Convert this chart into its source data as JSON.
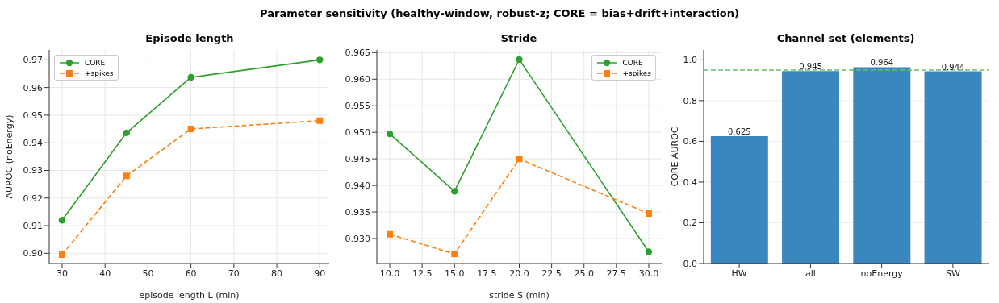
{
  "chart_data": [
    {
      "type": "line",
      "title": "Episode length",
      "xlabel": "episode length L (min)",
      "ylabel": "AUROC (noEnergy)",
      "annotations": [
        "Parameter sensitivity (healthy-window, robust-z; CORE = bias+drift+interaction)"
      ],
      "x": [
        30,
        45,
        60,
        90
      ],
      "series": [
        {
          "name": "CORE",
          "color": "#2ca02c",
          "values": [
            0.912,
            0.9436,
            0.9637,
            0.97
          ],
          "marker": "circle",
          "line_style": "solid"
        },
        {
          "name": "+spikes",
          "color": "#ff7f0e",
          "values": [
            0.8995,
            0.928,
            0.945,
            0.948
          ],
          "marker": "square",
          "line_style": "dashed"
        }
      ],
      "xlim": [
        27,
        92.2
      ],
      "xticks": [
        30,
        40,
        50,
        60,
        70,
        80,
        90
      ],
      "ylim": [
        0.8963,
        0.9736
      ],
      "yticks": [
        {
          "value": 0.9,
          "label": "0.90"
        },
        0.91,
        0.92,
        0.93,
        0.94,
        0.95,
        0.96,
        0.97
      ],
      "grid": true,
      "legend": "top left"
    },
    {
      "type": "line",
      "title": "Stride",
      "xlabel": "stride S (min)",
      "x": [
        10,
        15,
        20,
        30
      ],
      "series": [
        {
          "name": "CORE",
          "color": "#2ca02c",
          "values": [
            0.9497,
            0.9389,
            0.9637,
            0.9275
          ],
          "marker": "circle",
          "line_style": "solid"
        },
        {
          "name": "+spikes",
          "color": "#ff7f0e",
          "values": [
            0.9308,
            0.9271,
            0.945,
            0.9347
          ],
          "marker": "square",
          "line_style": "dashed"
        }
      ],
      "xlim": [
        9,
        31
      ],
      "xticks": [
        {
          "value": 10,
          "label": "10.0"
        },
        12.5,
        {
          "value": 15,
          "label": "15.0"
        },
        17.5,
        {
          "value": 20,
          "label": "20.0"
        },
        22.5,
        {
          "value": 25,
          "label": "25.0"
        },
        27.5,
        {
          "value": 30,
          "label": "30.0"
        }
      ],
      "ylim": [
        0.9253,
        0.9655
      ],
      "yticks": [
        {
          "value": 0.93,
          "label": "0.930"
        },
        0.935,
        {
          "value": 0.94,
          "label": "0.940"
        },
        0.945,
        {
          "value": 0.95,
          "label": "0.950"
        },
        0.955,
        {
          "value": 0.96,
          "label": "0.960"
        },
        0.965
      ],
      "grid": true,
      "legend": "top right"
    },
    {
      "type": "bar",
      "title": "Channel set (elements)",
      "ylabel": "CORE AUROC",
      "categories": [
        "HW",
        "all",
        "noEnergy",
        "SW"
      ],
      "values": [
        0.625,
        0.945,
        0.964,
        0.944
      ],
      "color": "#3a87c0",
      "data_labels": true,
      "ylim": [
        0,
        1.049
      ],
      "yticks": [
        {
          "value": 0,
          "label": "0.0"
        },
        0.2,
        0.4,
        0.6,
        0.8,
        {
          "value": 1,
          "label": "1.0"
        }
      ],
      "grid": "y",
      "ref_lines": [
        {
          "axis": "y",
          "value": 0.95,
          "color": "#6abf69",
          "line_style": "dashed"
        }
      ]
    }
  ]
}
